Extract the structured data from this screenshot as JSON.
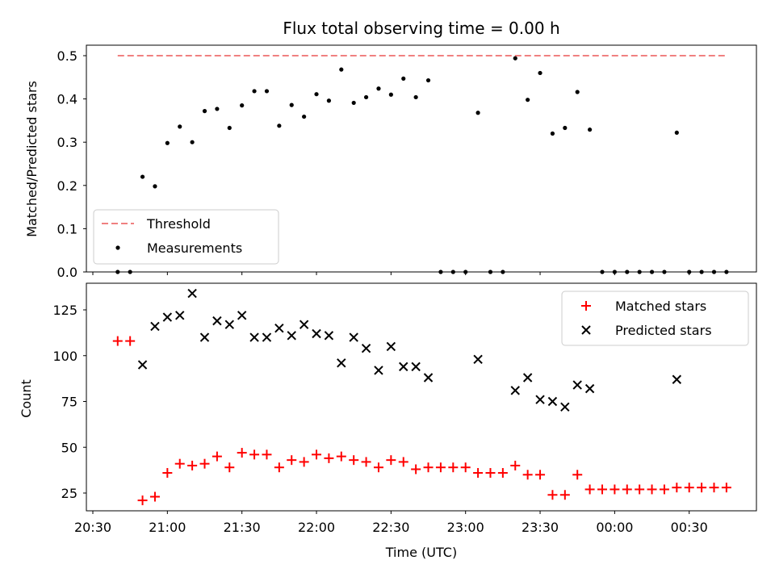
{
  "chart_data": [
    {
      "type": "scatter",
      "title": "Flux total observing time = 0.00 h",
      "xlabel": "",
      "ylabel": "Matched/Predicted stars",
      "ylim": [
        0,
        0.52
      ],
      "yticks": [
        "0.0",
        "0.1",
        "0.2",
        "0.3",
        "0.4",
        "0.5"
      ],
      "threshold": 0.5,
      "legend_position": "lower-left",
      "series": [
        {
          "name": "Threshold",
          "type": "line",
          "style": "dashed",
          "color": "#f08080",
          "x": [
            "20:40",
            "00:45"
          ],
          "y": [
            0.5,
            0.5
          ]
        },
        {
          "name": "Measurements",
          "type": "scatter",
          "color": "#000000",
          "x": [
            "20:40",
            "20:45",
            "20:50",
            "20:55",
            "21:00",
            "21:05",
            "21:10",
            "21:15",
            "21:20",
            "21:25",
            "21:30",
            "21:35",
            "21:40",
            "21:45",
            "21:50",
            "21:55",
            "22:00",
            "22:05",
            "22:10",
            "22:15",
            "22:20",
            "22:25",
            "22:30",
            "22:35",
            "22:40",
            "22:45",
            "22:50",
            "22:55",
            "23:00",
            "23:05",
            "23:10",
            "23:15",
            "23:20",
            "23:25",
            "23:30",
            "23:35",
            "23:40",
            "23:45",
            "23:50",
            "23:55",
            "00:00",
            "00:05",
            "00:10",
            "00:15",
            "00:20",
            "00:25",
            "00:30",
            "00:35",
            "00:40",
            "00:45"
          ],
          "y": [
            0.0,
            0.0,
            0.22,
            0.198,
            0.298,
            0.336,
            0.3,
            0.372,
            0.377,
            0.333,
            0.385,
            0.418,
            0.418,
            0.338,
            0.386,
            0.359,
            0.411,
            0.396,
            0.468,
            0.391,
            0.404,
            0.424,
            0.41,
            0.447,
            0.404,
            0.443,
            0.0,
            0.0,
            0.0,
            0.368,
            0.0,
            0.0,
            0.494,
            0.398,
            0.46,
            0.32,
            0.333,
            0.416,
            0.329,
            0.0,
            0.0,
            0.0,
            0.0,
            0.0,
            0.0,
            0.322,
            0.0,
            0.0,
            0.0,
            0.0
          ]
        }
      ]
    },
    {
      "type": "scatter",
      "title": "",
      "xlabel": "Time (UTC)",
      "ylabel": "Count",
      "ylim": [
        15,
        140
      ],
      "yticks": [
        "25",
        "50",
        "75",
        "100",
        "125"
      ],
      "xticks": [
        "20:30",
        "21:00",
        "21:30",
        "22:00",
        "22:30",
        "23:00",
        "23:30",
        "00:00",
        "00:30"
      ],
      "legend_position": "upper-right",
      "series": [
        {
          "name": "Matched stars",
          "type": "scatter",
          "marker": "+",
          "color": "#ff0000",
          "x": [
            "20:40",
            "20:45",
            "20:50",
            "20:55",
            "21:00",
            "21:05",
            "21:10",
            "21:15",
            "21:20",
            "21:25",
            "21:30",
            "21:35",
            "21:40",
            "21:45",
            "21:50",
            "21:55",
            "22:00",
            "22:05",
            "22:10",
            "22:15",
            "22:20",
            "22:25",
            "22:30",
            "22:35",
            "22:40",
            "22:45",
            "22:50",
            "22:55",
            "23:00",
            "23:05",
            "23:10",
            "23:15",
            "23:20",
            "23:25",
            "23:30",
            "23:35",
            "23:40",
            "23:45",
            "23:50",
            "23:55",
            "00:00",
            "00:05",
            "00:10",
            "00:15",
            "00:20",
            "00:25",
            "00:30",
            "00:35",
            "00:40",
            "00:45"
          ],
          "y": [
            108,
            108,
            21,
            23,
            36,
            41,
            40,
            41,
            45,
            39,
            47,
            46,
            46,
            39,
            43,
            42,
            46,
            44,
            45,
            43,
            42,
            39,
            43,
            42,
            38,
            39,
            39,
            39,
            39,
            36,
            36,
            36,
            40,
            35,
            35,
            24,
            24,
            35,
            27,
            27,
            27,
            27,
            27,
            27,
            27,
            28,
            28,
            28,
            28,
            28
          ]
        },
        {
          "name": "Predicted stars",
          "type": "scatter",
          "marker": "x",
          "color": "#000000",
          "x": [
            "20:50",
            "20:55",
            "21:00",
            "21:05",
            "21:10",
            "21:15",
            "21:20",
            "21:25",
            "21:30",
            "21:35",
            "21:40",
            "21:45",
            "21:50",
            "21:55",
            "22:00",
            "22:05",
            "22:10",
            "22:15",
            "22:20",
            "22:25",
            "22:30",
            "22:35",
            "22:40",
            "22:45",
            "23:05",
            "23:20",
            "23:25",
            "23:30",
            "23:35",
            "23:40",
            "23:45",
            "23:50",
            "00:25"
          ],
          "y": [
            95,
            116,
            121,
            122,
            134,
            110,
            119,
            117,
            122,
            110,
            110,
            115,
            111,
            117,
            112,
            111,
            96,
            110,
            104,
            92,
            105,
            94,
            94,
            88,
            98,
            81,
            88,
            76,
            75,
            72,
            84,
            82,
            87
          ]
        }
      ]
    }
  ]
}
